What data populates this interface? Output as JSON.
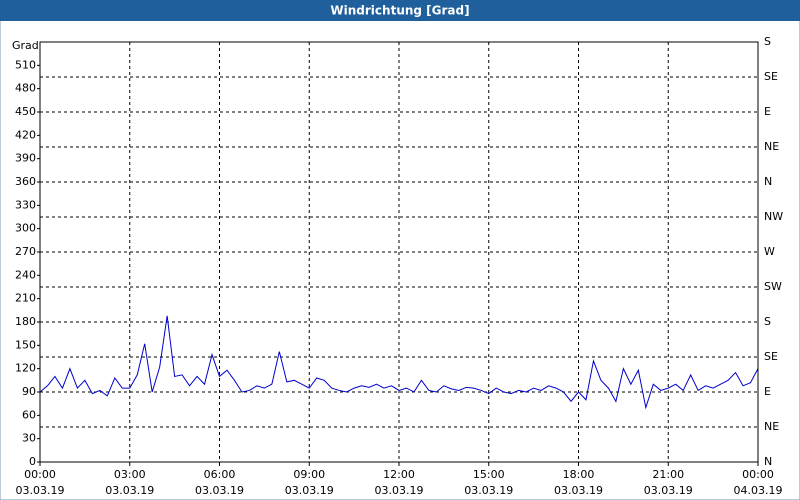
{
  "chart_data": {
    "type": "line",
    "title": "Windrichtung [Grad]",
    "y_label": "Grad",
    "xlim": [
      0,
      24
    ],
    "xticks": [
      {
        "value": 0,
        "label": "00:00",
        "date": "03.03.19"
      },
      {
        "value": 3,
        "label": "03:00",
        "date": "03.03.19"
      },
      {
        "value": 6,
        "label": "06:00",
        "date": "03.03.19"
      },
      {
        "value": 9,
        "label": "09:00",
        "date": "03.03.19"
      },
      {
        "value": 12,
        "label": "12:00",
        "date": "03.03.19"
      },
      {
        "value": 15,
        "label": "15:00",
        "date": "03.03.19"
      },
      {
        "value": 18,
        "label": "18:00",
        "date": "03.03.19"
      },
      {
        "value": 21,
        "label": "21:00",
        "date": "03.03.19"
      },
      {
        "value": 24,
        "label": "00:00",
        "date": "04.03.19"
      }
    ],
    "ylim": [
      0,
      540
    ],
    "yticks": [
      0,
      30,
      60,
      90,
      120,
      150,
      180,
      210,
      240,
      270,
      300,
      330,
      360,
      390,
      420,
      450,
      480,
      510
    ],
    "y2lim": [
      0,
      540
    ],
    "y2ticks": [
      {
        "value": 0,
        "label": "N"
      },
      {
        "value": 45,
        "label": "NE"
      },
      {
        "value": 90,
        "label": "E"
      },
      {
        "value": 135,
        "label": "SE"
      },
      {
        "value": 180,
        "label": "S"
      },
      {
        "value": 225,
        "label": "SW"
      },
      {
        "value": 270,
        "label": "W"
      },
      {
        "value": 315,
        "label": "NW"
      },
      {
        "value": 360,
        "label": "N"
      },
      {
        "value": 405,
        "label": "NE"
      },
      {
        "value": 450,
        "label": "E"
      },
      {
        "value": 495,
        "label": "SE"
      },
      {
        "value": 540,
        "label": "S"
      }
    ],
    "grid": true,
    "series": [
      {
        "name": "Windrichtung",
        "color": "#0000cc",
        "x": [
          0,
          0.25,
          0.5,
          0.75,
          1,
          1.25,
          1.5,
          1.75,
          2,
          2.25,
          2.5,
          2.75,
          3,
          3.25,
          3.5,
          3.75,
          4,
          4.25,
          4.5,
          4.75,
          5,
          5.25,
          5.5,
          5.75,
          6,
          6.25,
          6.5,
          6.75,
          7,
          7.25,
          7.5,
          7.75,
          8,
          8.25,
          8.5,
          8.75,
          9,
          9.25,
          9.5,
          9.75,
          10,
          10.25,
          10.5,
          10.75,
          11,
          11.25,
          11.5,
          11.75,
          12,
          12.25,
          12.5,
          12.75,
          13,
          13.25,
          13.5,
          13.75,
          14,
          14.25,
          14.5,
          14.75,
          15,
          15.25,
          15.5,
          15.75,
          16,
          16.25,
          16.5,
          16.75,
          17,
          17.25,
          17.5,
          17.75,
          18,
          18.25,
          18.5,
          18.75,
          19,
          19.25,
          19.5,
          19.75,
          20,
          20.25,
          20.5,
          20.75,
          21,
          21.25,
          21.5,
          21.75,
          22,
          22.25,
          22.5,
          22.75,
          23,
          23.25,
          23.5,
          23.75,
          24
        ],
        "values": [
          90,
          98,
          110,
          95,
          120,
          95,
          105,
          88,
          92,
          85,
          108,
          95,
          95,
          112,
          152,
          90,
          122,
          188,
          110,
          112,
          98,
          110,
          100,
          138,
          110,
          118,
          105,
          90,
          92,
          98,
          95,
          100,
          142,
          103,
          105,
          100,
          95,
          108,
          105,
          95,
          92,
          90,
          95,
          98,
          96,
          100,
          95,
          98,
          92,
          95,
          90,
          105,
          92,
          90,
          98,
          94,
          92,
          96,
          95,
          92,
          88,
          95,
          90,
          88,
          92,
          90,
          95,
          92,
          98,
          95,
          90,
          78,
          90,
          80,
          130,
          105,
          95,
          78,
          120,
          100,
          118,
          70,
          100,
          92,
          95,
          100,
          92,
          112,
          92,
          98,
          95,
          100,
          105,
          115,
          98,
          102,
          120
        ]
      }
    ]
  }
}
